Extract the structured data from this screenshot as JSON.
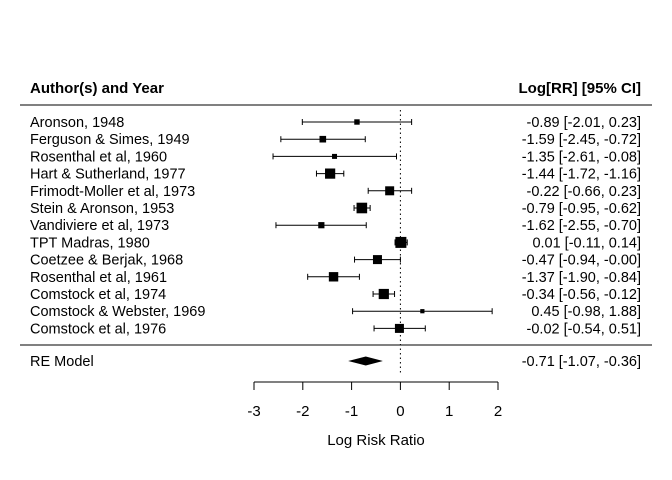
{
  "chart_data": {
    "type": "forest",
    "header_left": "Author(s) and Year",
    "header_right": "Log[RR] [95% CI]",
    "xlabel": "Log Risk Ratio",
    "xlim": [
      -3,
      2
    ],
    "xticks": [
      "-3",
      "-2",
      "-1",
      "0",
      "1",
      "2"
    ],
    "reference_line": 0,
    "studies": [
      {
        "label": "Aronson, 1948",
        "est": -0.89,
        "lo": -2.01,
        "hi": 0.23,
        "text": "-0.89 [-2.01,  0.23]",
        "weight": 0.3
      },
      {
        "label": "Ferguson & Simes, 1949",
        "est": -1.59,
        "lo": -2.45,
        "hi": -0.72,
        "text": "-1.59 [-2.45, -0.72]",
        "weight": 0.45
      },
      {
        "label": "Rosenthal et al, 1960",
        "est": -1.35,
        "lo": -2.61,
        "hi": -0.08,
        "text": "-1.35 [-2.61, -0.08]",
        "weight": 0.25
      },
      {
        "label": "Hart & Sutherland, 1977",
        "est": -1.44,
        "lo": -1.72,
        "hi": -1.16,
        "text": "-1.44 [-1.72, -1.16]",
        "weight": 0.9
      },
      {
        "label": "Frimodt-Moller et al, 1973",
        "est": -0.22,
        "lo": -0.66,
        "hi": 0.23,
        "text": "-0.22 [-0.66,  0.23]",
        "weight": 0.75
      },
      {
        "label": "Stein & Aronson, 1953",
        "est": -0.79,
        "lo": -0.95,
        "hi": -0.62,
        "text": "-0.79 [-0.95, -0.62]",
        "weight": 0.95
      },
      {
        "label": "Vandiviere et al, 1973",
        "est": -1.62,
        "lo": -2.55,
        "hi": -0.7,
        "text": "-1.62 [-2.55, -0.70]",
        "weight": 0.4
      },
      {
        "label": "TPT Madras, 1980",
        "est": 0.01,
        "lo": -0.11,
        "hi": 0.14,
        "text": " 0.01 [-0.11,  0.14]",
        "weight": 1.0
      },
      {
        "label": "Coetzee & Berjak, 1968",
        "est": -0.47,
        "lo": -0.94,
        "hi": 0.0,
        "text": "-0.47 [-0.94, -0.00]",
        "weight": 0.75
      },
      {
        "label": "Rosenthal et al, 1961",
        "est": -1.37,
        "lo": -1.9,
        "hi": -0.84,
        "text": "-1.37 [-1.90, -0.84]",
        "weight": 0.8
      },
      {
        "label": "Comstock et al, 1974",
        "est": -0.34,
        "lo": -0.56,
        "hi": -0.12,
        "text": "-0.34 [-0.56, -0.12]",
        "weight": 0.9
      },
      {
        "label": "Comstock & Webster, 1969",
        "est": 0.45,
        "lo": -0.98,
        "hi": 1.88,
        "text": " 0.45 [-0.98,  1.88]",
        "weight": 0.15
      },
      {
        "label": "Comstock et al, 1976",
        "est": -0.02,
        "lo": -0.54,
        "hi": 0.51,
        "text": "-0.02 [-0.54,  0.51]",
        "weight": 0.75
      }
    ],
    "summary": {
      "label": "RE Model",
      "est": -0.71,
      "lo": -1.07,
      "hi": -0.36,
      "text": "-0.71 [-1.07, -0.36]"
    }
  }
}
